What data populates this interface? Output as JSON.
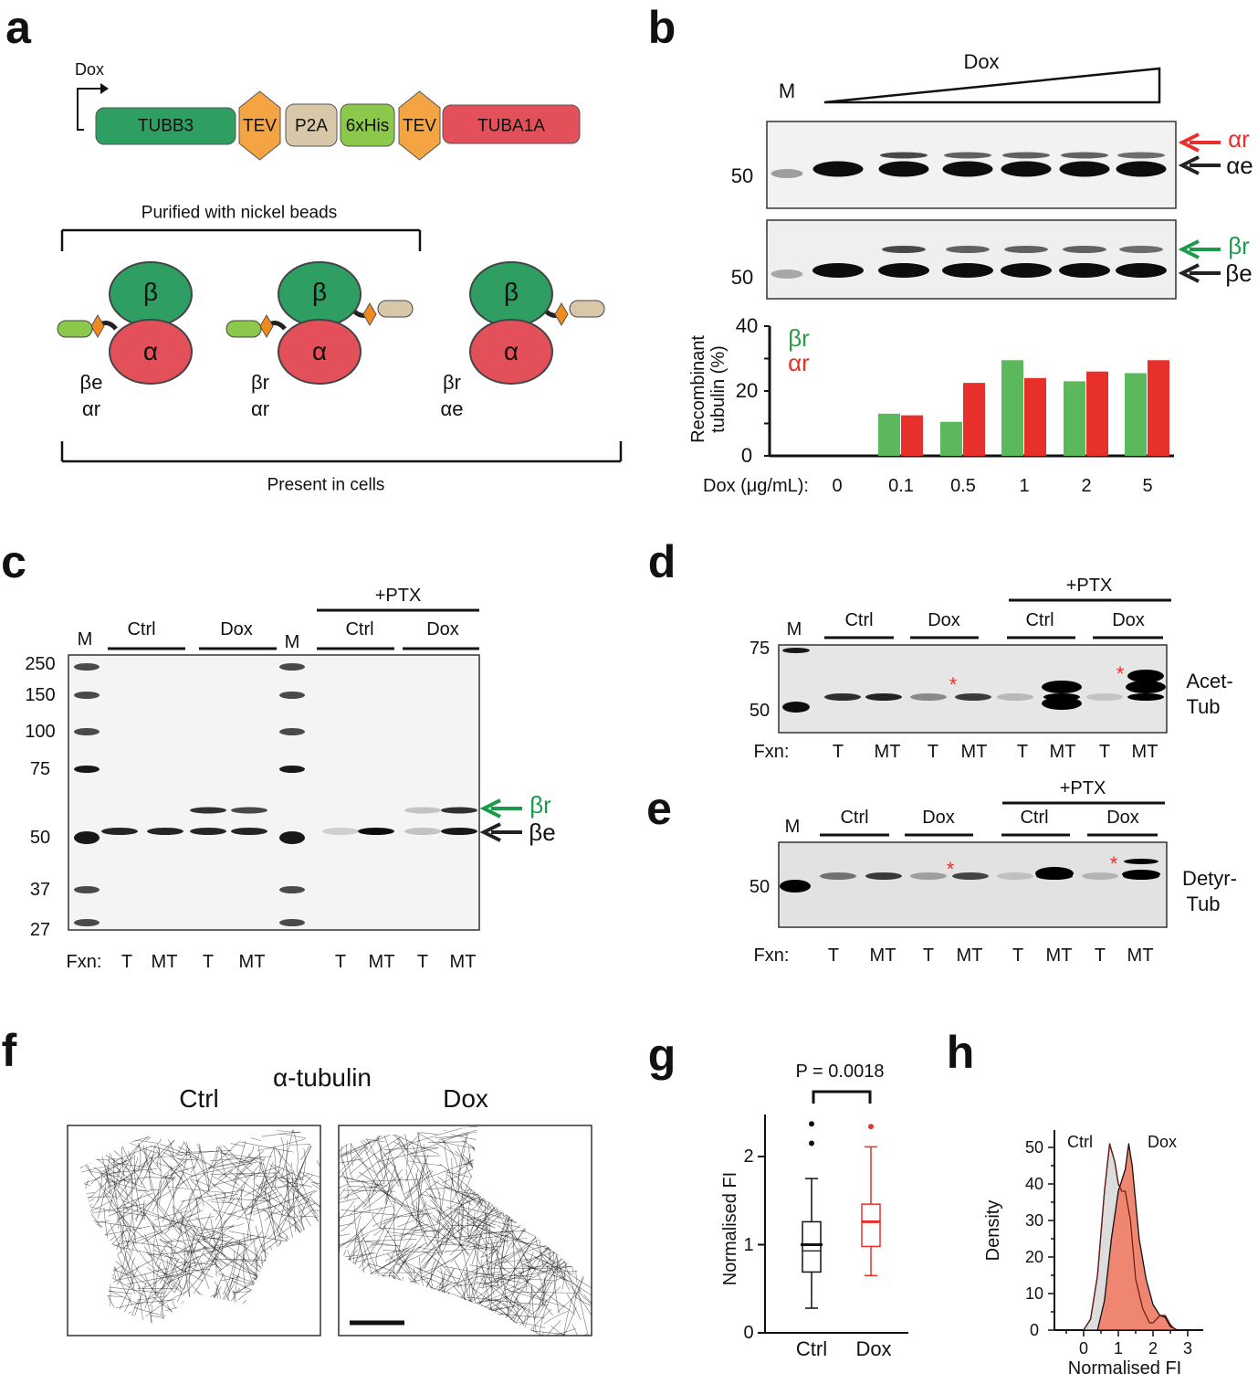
{
  "panel_labels": {
    "a": "a",
    "b": "b",
    "c": "c",
    "d": "d",
    "e": "e",
    "f": "f",
    "g": "g",
    "h": "h"
  },
  "a": {
    "dox": "Dox",
    "construct": [
      "TUBB3",
      "TEV",
      "P2A",
      "6xHis",
      "TEV",
      "TUBA1A"
    ],
    "construct_colors": [
      "#2e9e62",
      "#f5a443",
      "#d8c7a8",
      "#8cc84b",
      "#f5a443",
      "#e4505a"
    ],
    "purified": "Purified with nickel beads",
    "present": "Present in cells",
    "beta": "β",
    "alpha": "α",
    "complexes": [
      [
        "βe",
        "αr"
      ],
      [
        "βr",
        "αr"
      ],
      [
        "βr",
        "αe"
      ]
    ]
  },
  "b": {
    "dox": "Dox",
    "marker": "M",
    "mw": [
      "50",
      "50"
    ],
    "arrows": {
      "ar": "αr",
      "ae": "αe",
      "br": "βr",
      "be": "βe"
    },
    "chart_data": {
      "type": "bar",
      "xlabel": "Dox (μg/mL):",
      "ylabel": "Recombinant tubulin (%)",
      "categories": [
        "0",
        "0.1",
        "0.5",
        "1",
        "2",
        "5"
      ],
      "series": [
        {
          "name": "βr",
          "color": "#5cb85c",
          "values": [
            0,
            13,
            10.5,
            29.5,
            23,
            25.5
          ]
        },
        {
          "name": "αr",
          "color": "#e8302a",
          "values": [
            0,
            12.5,
            22.5,
            24,
            26,
            29.5
          ]
        }
      ],
      "ylim": [
        0,
        40
      ],
      "yticks": [
        "0",
        "20",
        "40"
      ],
      "legend": "top-left",
      "grid": false
    }
  },
  "c": {
    "headers": {
      "m1": "M",
      "ctrl": "Ctrl",
      "dox": "Dox",
      "m2": "M",
      "ptx": "+PTX",
      "ctrl2": "Ctrl",
      "dox2": "Dox"
    },
    "mw": [
      "250",
      "150",
      "100",
      "75",
      "50",
      "37",
      "27"
    ],
    "fxn": "Fxn:",
    "lanes": [
      "T",
      "MT",
      "T",
      "MT",
      "T",
      "MT",
      "T",
      "MT"
    ],
    "arrows": {
      "br": "βr",
      "be": "βe"
    }
  },
  "d": {
    "headers": {
      "m": "M",
      "ctrl": "Ctrl",
      "dox": "Dox",
      "ptx": "+PTX",
      "ctrl2": "Ctrl",
      "dox2": "Dox"
    },
    "mw": [
      "75",
      "50"
    ],
    "fxn": "Fxn:",
    "lanes": [
      "T",
      "MT",
      "T",
      "MT",
      "T",
      "MT",
      "T",
      "MT"
    ],
    "label": [
      "Acet-",
      "Tub"
    ],
    "asterisk": "*"
  },
  "e": {
    "headers": {
      "m": "M",
      "ctrl": "Ctrl",
      "dox": "Dox",
      "ptx": "+PTX",
      "ctrl2": "Ctrl",
      "dox2": "Dox"
    },
    "mw": [
      "50"
    ],
    "fxn": "Fxn:",
    "lanes": [
      "T",
      "MT",
      "T",
      "MT",
      "T",
      "MT",
      "T",
      "MT"
    ],
    "label": [
      "Detyr-",
      "Tub"
    ],
    "asterisk": "*"
  },
  "f": {
    "title": "α-tubulin",
    "ctrl": "Ctrl",
    "dox": "Dox"
  },
  "g": {
    "p_value": "P = 0.0018",
    "chart_data": {
      "type": "box",
      "ylabel": "Normalised FI",
      "categories": [
        "Ctrl",
        "Dox"
      ],
      "ylim": [
        0,
        2.5
      ],
      "yticks": [
        "0",
        "1",
        "2"
      ],
      "boxes": [
        {
          "name": "Ctrl",
          "color": "#111111",
          "min": 0.28,
          "q1": 0.69,
          "median": 0.93,
          "mean": 1.0,
          "q3": 1.26,
          "max": 1.75,
          "outliers": [
            2.15,
            2.37
          ]
        },
        {
          "name": "Dox",
          "color": "#e8302a",
          "min": 0.65,
          "q1": 0.98,
          "median": 1.26,
          "q3": 1.46,
          "max": 2.11,
          "outliers": [
            2.34
          ]
        }
      ]
    }
  },
  "h": {
    "chart_data": {
      "type": "area",
      "xlabel": "Normalised FI",
      "ylabel": "Density",
      "xlim": [
        -0.8,
        3.5
      ],
      "ylim": [
        0,
        55
      ],
      "xticks": [
        "0",
        "1",
        "2",
        "3"
      ],
      "yticks": [
        "0",
        "10",
        "20",
        "30",
        "40",
        "50"
      ],
      "series": [
        {
          "name": "Ctrl",
          "color": "#dddddd",
          "x": [
            0,
            0.2,
            0.4,
            0.6,
            0.75,
            0.9,
            1.0,
            1.1,
            1.2,
            1.35,
            1.5,
            1.7,
            1.9,
            2.0,
            2.2,
            2.35,
            2.5,
            2.65
          ],
          "y": [
            0,
            3,
            15,
            38,
            51,
            46,
            40,
            38,
            38,
            30,
            14,
            6,
            2,
            2,
            4,
            4,
            1.5,
            0
          ]
        },
        {
          "name": "Dox",
          "color": "#ee8672",
          "x": [
            0.4,
            0.6,
            0.8,
            1.0,
            1.2,
            1.3,
            1.4,
            1.6,
            1.8,
            2.0,
            2.2,
            2.35,
            2.5,
            2.7
          ],
          "y": [
            0,
            8,
            25,
            38,
            44,
            51,
            45,
            25,
            14,
            7,
            4,
            3.5,
            1,
            0
          ]
        }
      ]
    }
  }
}
